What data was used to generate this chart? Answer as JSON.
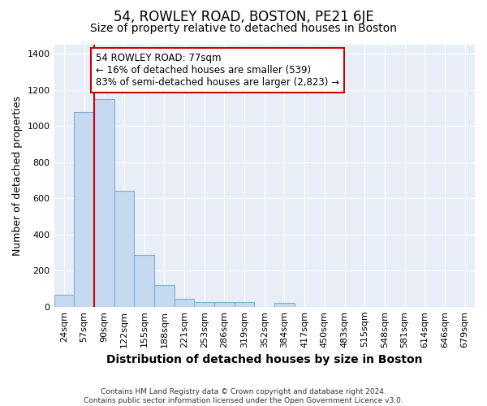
{
  "title": "54, ROWLEY ROAD, BOSTON, PE21 6JE",
  "subtitle": "Size of property relative to detached houses in Boston",
  "xlabel": "Distribution of detached houses by size in Boston",
  "ylabel": "Number of detached properties",
  "annotation_line1": "54 ROWLEY ROAD: 77sqm",
  "annotation_line2": "← 16% of detached houses are smaller (539)",
  "annotation_line3": "83% of semi-detached houses are larger (2,823) →",
  "footer_line1": "Contains HM Land Registry data © Crown copyright and database right 2024.",
  "footer_line2": "Contains public sector information licensed under the Open Government Licence v3.0.",
  "bin_labels": [
    "24sqm",
    "57sqm",
    "90sqm",
    "122sqm",
    "155sqm",
    "188sqm",
    "221sqm",
    "253sqm",
    "286sqm",
    "319sqm",
    "352sqm",
    "384sqm",
    "417sqm",
    "450sqm",
    "483sqm",
    "515sqm",
    "548sqm",
    "581sqm",
    "614sqm",
    "646sqm",
    "679sqm"
  ],
  "bar_heights": [
    65,
    1075,
    1150,
    640,
    285,
    120,
    45,
    25,
    25,
    25,
    0,
    20,
    0,
    0,
    0,
    0,
    0,
    0,
    0,
    0,
    0
  ],
  "bar_color": "#c5d9f0",
  "bar_edge_color": "#7fafd4",
  "vline_color": "#cc0000",
  "annotation_box_edge_color": "#cc0000",
  "ylim": [
    0,
    1450
  ],
  "background_color": "#e8eef8",
  "grid_color": "#ffffff",
  "title_fontsize": 12,
  "subtitle_fontsize": 10,
  "ylabel_fontsize": 9,
  "xlabel_fontsize": 10,
  "tick_fontsize": 8,
  "annotation_fontsize": 8.5
}
